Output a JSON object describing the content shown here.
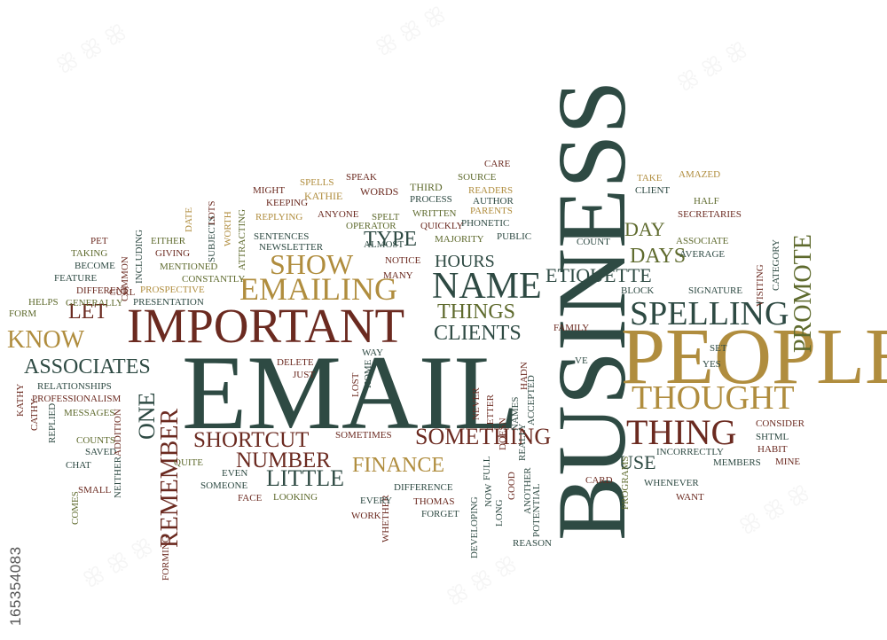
{
  "stock_id": "165354083",
  "words": {
    "email": "EMAIL",
    "business": "BUSINESS",
    "people": "PEOPLE",
    "important": "IMPORTANT",
    "emailing": "EMAILING",
    "show": "SHOW",
    "name": "NAME",
    "spelling": "SPELLING",
    "thought": "THOUGHT",
    "thing": "THING",
    "know": "KNOW",
    "associates": "ASSOCIATES",
    "something": "SOMETHING",
    "shortcut": "SHORTCUT",
    "number": "NUMBER",
    "finance": "FINANCE",
    "little": "LITTLE",
    "remember": "REMEMBER",
    "promote": "PROMOTE",
    "etiquette": "ETIQUETTE",
    "days": "DAYS",
    "day": "DAY",
    "hours": "HOURS",
    "things": "THINGS",
    "clients": "CLIENTS",
    "type": "TYPE",
    "let": "LET",
    "one": "ONE",
    "use": "USE",
    "speak": "SPEAK",
    "spells": "SPELLS",
    "kathie": "KATHIE",
    "words": "WORDS",
    "third": "THIRD",
    "source": "SOURCE",
    "care": "CARE",
    "readers": "READERS",
    "author": "AUTHOR",
    "keeping": "KEEPING",
    "might": "MIGHT",
    "process": "PROCESS",
    "parents": "PARENTS",
    "phonetic": "PHONETIC",
    "written": "WRITTEN",
    "spelt": "SPELT",
    "anyone": "ANYONE",
    "replying": "REPLYING",
    "operator": "OPERATOR",
    "quickly": "QUICKLY",
    "public": "PUBLIC",
    "majority": "MAJORITY",
    "sentences": "SENTENCES",
    "newsletter": "NEWSLETTER",
    "notice": "NOTICE",
    "many": "MANY",
    "attracting": "ATTRACTING",
    "worth": "WORTH",
    "subjects": "SUBJECTS",
    "lots": "LOTS",
    "date": "DATE",
    "either": "EITHER",
    "giving": "GIVING",
    "mentioned": "MENTIONED",
    "constantly": "CONSTANTLY",
    "prospective": "PROSPECTIVE",
    "presentation": "PRESENTATION",
    "including": "INCLUDING",
    "common": "COMMON",
    "curl": "CURL",
    "pet": "PET",
    "taking": "TAKING",
    "become": "BECOME",
    "feature": "FEATURE",
    "different": "DIFFERENT",
    "generally": "GENERALLY",
    "helps": "HELPS",
    "form": "FORM",
    "take": "TAKE",
    "client": "CLIENT",
    "half": "HALF",
    "amazed": "AMAZED",
    "secretaries": "SECRETARIES",
    "category": "CATEGORY",
    "associate": "ASSOCIATE",
    "count": "COUNT",
    "average": "AVERAGE",
    "visiting": "VISITING",
    "block": "BLOCK",
    "signature": "SIGNATURE",
    "family": "FAMILY",
    "ve": "VE",
    "set": "SET",
    "yes": "YES",
    "consider": "CONSIDER",
    "shtml": "SHTML",
    "habit": "HABIT",
    "mine": "MINE",
    "members": "MEMBERS",
    "incorrectly": "INCORRECTLY",
    "whenever": "WHENEVER",
    "want": "WANT",
    "programs": "PROGRAMS",
    "card": "CARD",
    "doesn": "DOESN",
    "names": "NAMES",
    "hadn": "HADN",
    "accepted": "ACCEPTED",
    "really": "REALLY",
    "letter": "LETTER",
    "full": "FULL",
    "good": "GOOD",
    "another": "ANOTHER",
    "potential": "POTENTIAL",
    "reason": "REASON",
    "long": "LONG",
    "now": "NOW",
    "developing": "DEVELOPING",
    "forget": "FORGET",
    "thomas": "THOMAS",
    "difference": "DIFFERENCE",
    "whether": "WHETHER",
    "work": "WORK",
    "every": "EVERY",
    "looking": "LOOKING",
    "face": "FACE",
    "someone": "SOMEONE",
    "even": "EVEN",
    "sometimes": "SOMETIMES",
    "almost": "ALMOST",
    "never": "NEVER",
    "way": "WAY",
    "delete": "DELETE",
    "just": "JUST",
    "lost": "LOST",
    "home": "HOME",
    "relationships": "RELATIONSHIPS",
    "professionalism": "PROFESSIONALISM",
    "kathy": "KATHY",
    "cathy": "CATHY",
    "replied": "REPLIED",
    "messages": "MESSAGES",
    "counts": "COUNTS",
    "saved": "SAVED",
    "chat": "CHAT",
    "small": "SMALL",
    "comes": "COMES",
    "forming": "FORMING",
    "addition": "ADDITION",
    "neither": "NEITHER",
    "quite": "QUITE"
  }
}
